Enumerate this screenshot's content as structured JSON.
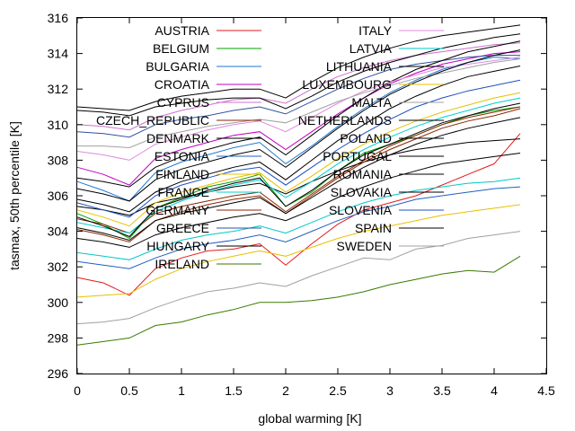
{
  "chart_data": {
    "type": "line",
    "title": "",
    "xlabel": "global warming [K]",
    "ylabel": "tasmax, 50th percentile [K]",
    "xlim": [
      0,
      4.5
    ],
    "ylim": [
      296,
      316
    ],
    "xticks": [
      0,
      0.5,
      1,
      1.5,
      2,
      2.5,
      3,
      3.5,
      4,
      4.5
    ],
    "xtick_labels": [
      "0",
      "0.5",
      "1",
      "1.5",
      "2",
      "2.5",
      "3",
      "3.5",
      "4",
      "4.5"
    ],
    "yticks": [
      296,
      298,
      300,
      302,
      304,
      306,
      308,
      310,
      312,
      314,
      316
    ],
    "ytick_labels": [
      "296",
      "298",
      "300",
      "302",
      "304",
      "306",
      "308",
      "310",
      "312",
      "314",
      "316"
    ],
    "grid": false,
    "legend_position": "top",
    "x": [
      0,
      0.25,
      0.5,
      0.75,
      1,
      1.25,
      1.5,
      1.75,
      2,
      2.25,
      2.5,
      2.75,
      3,
      3.25,
      3.5,
      3.75,
      4,
      4.25
    ],
    "series": [
      {
        "name": "AUSTRIA",
        "color": "#e41a1c",
        "values": [
          301.4,
          301.1,
          300.4,
          301.9,
          302.5,
          302.9,
          303.0,
          303.3,
          302.1,
          303.3,
          304.4,
          305.2,
          305.6,
          306.0,
          306.6,
          307.2,
          307.8,
          309.5
        ]
      },
      {
        "name": "BELGIUM",
        "color": "#00a000",
        "values": [
          305.0,
          304.4,
          303.6,
          305.3,
          305.9,
          306.5,
          306.8,
          307.2,
          305.4,
          306.2,
          307.4,
          308.4,
          308.9,
          309.4,
          310.0,
          310.5,
          310.8,
          311.0
        ]
      },
      {
        "name": "BULGARIA",
        "color": "#1f78d0",
        "values": [
          306.8,
          306.3,
          305.7,
          307.3,
          307.9,
          308.3,
          308.7,
          309.0,
          307.8,
          308.8,
          309.9,
          310.9,
          311.8,
          312.5,
          313.1,
          313.5,
          313.8,
          313.7
        ]
      },
      {
        "name": "CROATIA",
        "color": "#c000c0",
        "values": [
          307.6,
          307.2,
          306.6,
          308.1,
          308.6,
          309.0,
          309.4,
          309.6,
          308.6,
          309.6,
          310.6,
          311.5,
          312.3,
          312.9,
          313.4,
          313.7,
          314.0,
          314.1
        ]
      },
      {
        "name": "CYPRUS",
        "color": "#d070d0",
        "values": [
          310.0,
          309.9,
          309.7,
          310.4,
          310.8,
          311.1,
          311.4,
          311.5,
          311.2,
          312.0,
          312.7,
          313.2,
          313.6,
          313.9,
          314.1,
          314.3,
          314.5,
          314.6
        ]
      },
      {
        "name": "CZECH_REPUBLIC",
        "color": "#8b2500",
        "values": [
          304.7,
          304.4,
          303.9,
          305.0,
          305.4,
          305.7,
          306.0,
          306.2,
          305.1,
          306.1,
          307.1,
          308.0,
          308.8,
          309.4,
          310.0,
          310.4,
          310.7,
          311.0
        ]
      },
      {
        "name": "DENMARK",
        "color": "#000000",
        "values": [
          305.4,
          305.2,
          304.9,
          305.6,
          305.9,
          306.2,
          306.5,
          306.7,
          306.1,
          306.8,
          307.4,
          307.9,
          308.3,
          308.6,
          308.8,
          309.0,
          309.1,
          309.2
        ]
      },
      {
        "name": "ESTONIA",
        "color": "#2060c0",
        "values": [
          302.3,
          302.1,
          301.9,
          302.5,
          303.0,
          303.3,
          303.5,
          303.8,
          303.4,
          304.0,
          304.6,
          305.1,
          305.4,
          305.8,
          306.0,
          306.2,
          306.4,
          306.5
        ]
      },
      {
        "name": "FINLAND",
        "color": "#e8c000",
        "values": [
          300.3,
          300.4,
          300.5,
          301.3,
          301.9,
          302.3,
          302.6,
          302.9,
          302.6,
          303.1,
          303.6,
          304.0,
          304.3,
          304.6,
          304.9,
          305.1,
          305.3,
          305.5
        ]
      },
      {
        "name": "FRANCE",
        "color": "#00d0d0",
        "values": [
          304.5,
          304.2,
          303.9,
          305.1,
          305.7,
          306.2,
          306.6,
          306.9,
          305.9,
          306.8,
          307.8,
          308.6,
          309.3,
          309.9,
          310.4,
          310.8,
          311.2,
          311.5
        ]
      },
      {
        "name": "GERMANY",
        "color": "#8b2500",
        "values": [
          304.1,
          303.8,
          303.4,
          304.6,
          305.1,
          305.5,
          305.8,
          306.0,
          305.0,
          306.0,
          307.0,
          307.9,
          308.6,
          309.2,
          309.8,
          310.2,
          310.5,
          310.9
        ]
      },
      {
        "name": "GREECE",
        "color": "#3050a0",
        "values": [
          309.6,
          309.5,
          309.3,
          310.0,
          310.3,
          310.5,
          310.8,
          311.0,
          310.6,
          311.3,
          312.0,
          312.6,
          313.1,
          313.4,
          313.6,
          313.8,
          313.9,
          313.9
        ]
      },
      {
        "name": "HUNGARY",
        "color": "#000000",
        "values": [
          307.0,
          306.8,
          306.5,
          307.6,
          308.2,
          308.6,
          309.0,
          309.3,
          308.3,
          309.4,
          310.5,
          311.5,
          312.4,
          313.1,
          313.6,
          314.1,
          314.4,
          314.7
        ]
      },
      {
        "name": "IRELAND",
        "color": "#3a7a00",
        "values": [
          297.6,
          297.8,
          298.0,
          298.7,
          298.9,
          299.3,
          299.6,
          300.0,
          300.0,
          300.1,
          300.3,
          300.6,
          301.0,
          301.3,
          301.6,
          301.8,
          301.7,
          302.6
        ]
      },
      {
        "name": "ITALY",
        "color": "#e08ae0",
        "values": [
          308.5,
          308.3,
          308.0,
          308.9,
          309.3,
          309.7,
          310.0,
          310.2,
          309.6,
          310.4,
          311.2,
          311.9,
          312.4,
          312.8,
          313.2,
          313.4,
          313.6,
          313.8
        ]
      },
      {
        "name": "LATVIA",
        "color": "#00c8c8",
        "values": [
          302.8,
          302.6,
          302.4,
          303.0,
          303.5,
          303.8,
          304.0,
          304.3,
          303.9,
          304.5,
          305.1,
          305.6,
          306.0,
          306.3,
          306.5,
          306.7,
          306.8,
          307.0
        ]
      },
      {
        "name": "LITHUANIA",
        "color": "#000000",
        "values": [
          303.6,
          303.4,
          303.1,
          303.8,
          304.2,
          304.5,
          304.8,
          305.0,
          304.6,
          305.2,
          305.9,
          306.5,
          307.0,
          307.4,
          307.8,
          308.0,
          308.2,
          308.4
        ]
      },
      {
        "name": "LUXEMBOURG",
        "color": "#e8c000",
        "values": [
          305.2,
          304.8,
          304.3,
          305.6,
          306.2,
          306.6,
          307.0,
          307.3,
          306.2,
          307.1,
          308.1,
          308.9,
          309.6,
          310.2,
          310.7,
          311.1,
          311.5,
          311.8
        ]
      },
      {
        "name": "MALTA",
        "color": "#a0a0a0",
        "values": [
          308.8,
          308.8,
          308.7,
          309.3,
          309.6,
          309.9,
          310.1,
          310.3,
          310.1,
          310.7,
          311.3,
          311.8,
          312.2,
          312.6,
          312.9,
          313.2,
          313.5,
          313.7
        ]
      },
      {
        "name": "NETHERLANDS",
        "color": "#000000",
        "values": [
          304.8,
          304.3,
          303.7,
          305.3,
          305.8,
          306.3,
          306.7,
          307.0,
          305.4,
          306.3,
          307.4,
          308.3,
          308.9,
          309.5,
          310.1,
          310.5,
          310.9,
          311.2
        ]
      },
      {
        "name": "POLAND",
        "color": "#000000",
        "values": [
          304.2,
          303.9,
          303.5,
          304.6,
          305.0,
          305.3,
          305.6,
          305.9,
          305.0,
          305.9,
          306.8,
          307.6,
          308.3,
          308.9,
          309.4,
          309.8,
          310.1,
          310.4
        ]
      },
      {
        "name": "PORTUGAL",
        "color": "#000000",
        "values": [
          310.8,
          310.7,
          310.5,
          311.0,
          311.2,
          311.4,
          311.5,
          311.5,
          310.9,
          311.6,
          312.4,
          313.0,
          313.5,
          313.9,
          314.3,
          314.6,
          314.9,
          315.1
        ]
      },
      {
        "name": "ROMANIA",
        "color": "#000000",
        "values": [
          306.4,
          306.1,
          305.7,
          306.9,
          307.5,
          307.9,
          308.3,
          308.6,
          307.6,
          308.7,
          309.8,
          310.8,
          311.7,
          312.4,
          313.0,
          313.5,
          313.9,
          314.2
        ]
      },
      {
        "name": "SLOVAKIA",
        "color": "#000000",
        "values": [
          305.8,
          305.5,
          305.1,
          306.2,
          306.8,
          307.2,
          307.6,
          307.9,
          306.9,
          308.0,
          309.1,
          310.0,
          310.9,
          311.6,
          312.2,
          312.7,
          313.0,
          313.3
        ]
      },
      {
        "name": "SLOVENIA",
        "color": "#1f50c0",
        "values": [
          305.6,
          305.2,
          304.8,
          306.0,
          306.6,
          307.0,
          307.4,
          307.6,
          306.6,
          307.6,
          308.6,
          309.5,
          310.3,
          311.0,
          311.5,
          311.9,
          312.2,
          312.5
        ]
      },
      {
        "name": "SPAIN",
        "color": "#000000",
        "values": [
          311.0,
          310.9,
          310.8,
          311.3,
          311.6,
          311.8,
          312.0,
          312.0,
          311.5,
          312.4,
          313.2,
          313.8,
          314.3,
          314.7,
          315.0,
          315.2,
          315.4,
          315.6
        ]
      },
      {
        "name": "SWEDEN",
        "color": "#a0a0a0",
        "values": [
          298.8,
          298.9,
          299.1,
          299.7,
          300.2,
          300.6,
          300.8,
          301.1,
          300.9,
          301.5,
          302.0,
          302.5,
          302.4,
          303.0,
          303.2,
          303.6,
          303.8,
          304.0
        ]
      }
    ]
  }
}
